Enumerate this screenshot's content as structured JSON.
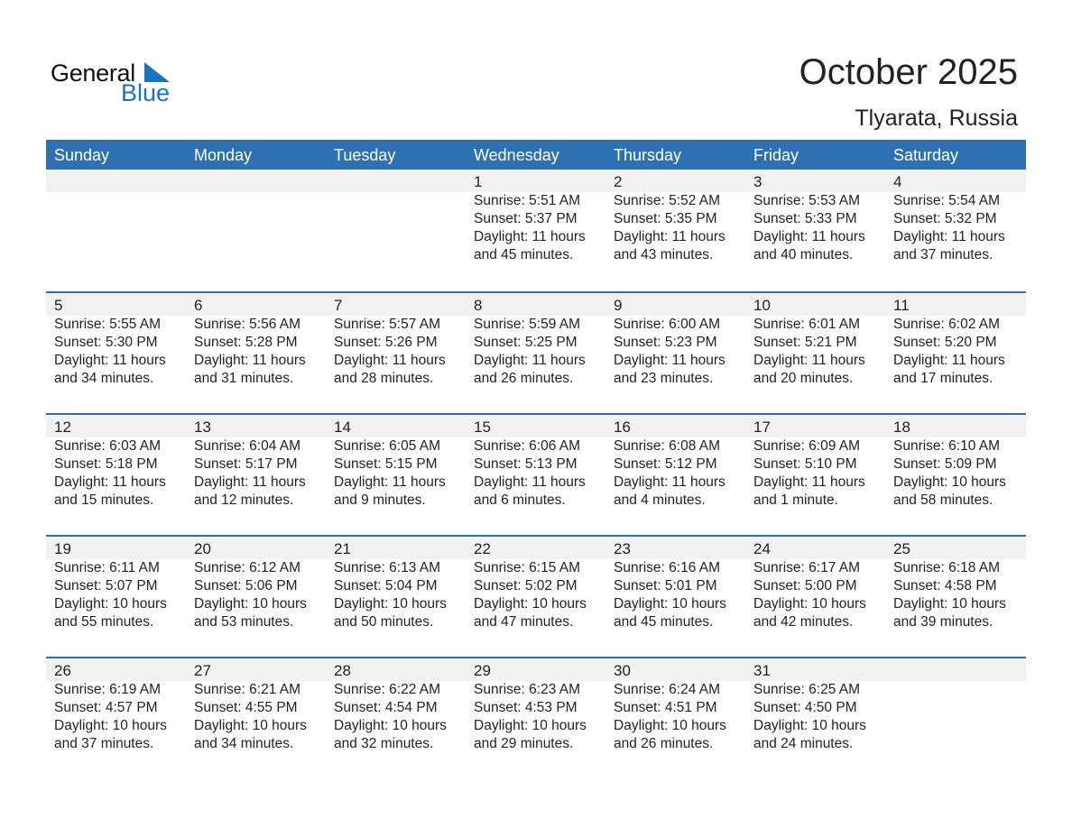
{
  "logo": {
    "text_general": "General",
    "text_blue": "Blue",
    "accent": "#1a72c0"
  },
  "header": {
    "title": "October 2025",
    "location": "Tlyarata, Russia"
  },
  "colors": {
    "header_bg": "#2e71b3",
    "date_strip": "#f2f2f2"
  },
  "weekdays": [
    "Sunday",
    "Monday",
    "Tuesday",
    "Wednesday",
    "Thursday",
    "Friday",
    "Saturday"
  ],
  "weeks": [
    [
      null,
      null,
      null,
      {
        "day": "1",
        "lines": [
          "Sunrise: 5:51 AM",
          "Sunset: 5:37 PM",
          "Daylight: 11 hours",
          "and 45 minutes."
        ]
      },
      {
        "day": "2",
        "lines": [
          "Sunrise: 5:52 AM",
          "Sunset: 5:35 PM",
          "Daylight: 11 hours",
          "and 43 minutes."
        ]
      },
      {
        "day": "3",
        "lines": [
          "Sunrise: 5:53 AM",
          "Sunset: 5:33 PM",
          "Daylight: 11 hours",
          "and 40 minutes."
        ]
      },
      {
        "day": "4",
        "lines": [
          "Sunrise: 5:54 AM",
          "Sunset: 5:32 PM",
          "Daylight: 11 hours",
          "and 37 minutes."
        ]
      }
    ],
    [
      {
        "day": "5",
        "lines": [
          "Sunrise: 5:55 AM",
          "Sunset: 5:30 PM",
          "Daylight: 11 hours",
          "and 34 minutes."
        ]
      },
      {
        "day": "6",
        "lines": [
          "Sunrise: 5:56 AM",
          "Sunset: 5:28 PM",
          "Daylight: 11 hours",
          "and 31 minutes."
        ]
      },
      {
        "day": "7",
        "lines": [
          "Sunrise: 5:57 AM",
          "Sunset: 5:26 PM",
          "Daylight: 11 hours",
          "and 28 minutes."
        ]
      },
      {
        "day": "8",
        "lines": [
          "Sunrise: 5:59 AM",
          "Sunset: 5:25 PM",
          "Daylight: 11 hours",
          "and 26 minutes."
        ]
      },
      {
        "day": "9",
        "lines": [
          "Sunrise: 6:00 AM",
          "Sunset: 5:23 PM",
          "Daylight: 11 hours",
          "and 23 minutes."
        ]
      },
      {
        "day": "10",
        "lines": [
          "Sunrise: 6:01 AM",
          "Sunset: 5:21 PM",
          "Daylight: 11 hours",
          "and 20 minutes."
        ]
      },
      {
        "day": "11",
        "lines": [
          "Sunrise: 6:02 AM",
          "Sunset: 5:20 PM",
          "Daylight: 11 hours",
          "and 17 minutes."
        ]
      }
    ],
    [
      {
        "day": "12",
        "lines": [
          "Sunrise: 6:03 AM",
          "Sunset: 5:18 PM",
          "Daylight: 11 hours",
          "and 15 minutes."
        ]
      },
      {
        "day": "13",
        "lines": [
          "Sunrise: 6:04 AM",
          "Sunset: 5:17 PM",
          "Daylight: 11 hours",
          "and 12 minutes."
        ]
      },
      {
        "day": "14",
        "lines": [
          "Sunrise: 6:05 AM",
          "Sunset: 5:15 PM",
          "Daylight: 11 hours",
          "and 9 minutes."
        ]
      },
      {
        "day": "15",
        "lines": [
          "Sunrise: 6:06 AM",
          "Sunset: 5:13 PM",
          "Daylight: 11 hours",
          "and 6 minutes."
        ]
      },
      {
        "day": "16",
        "lines": [
          "Sunrise: 6:08 AM",
          "Sunset: 5:12 PM",
          "Daylight: 11 hours",
          "and 4 minutes."
        ]
      },
      {
        "day": "17",
        "lines": [
          "Sunrise: 6:09 AM",
          "Sunset: 5:10 PM",
          "Daylight: 11 hours",
          "and 1 minute."
        ]
      },
      {
        "day": "18",
        "lines": [
          "Sunrise: 6:10 AM",
          "Sunset: 5:09 PM",
          "Daylight: 10 hours",
          "and 58 minutes."
        ]
      }
    ],
    [
      {
        "day": "19",
        "lines": [
          "Sunrise: 6:11 AM",
          "Sunset: 5:07 PM",
          "Daylight: 10 hours",
          "and 55 minutes."
        ]
      },
      {
        "day": "20",
        "lines": [
          "Sunrise: 6:12 AM",
          "Sunset: 5:06 PM",
          "Daylight: 10 hours",
          "and 53 minutes."
        ]
      },
      {
        "day": "21",
        "lines": [
          "Sunrise: 6:13 AM",
          "Sunset: 5:04 PM",
          "Daylight: 10 hours",
          "and 50 minutes."
        ]
      },
      {
        "day": "22",
        "lines": [
          "Sunrise: 6:15 AM",
          "Sunset: 5:02 PM",
          "Daylight: 10 hours",
          "and 47 minutes."
        ]
      },
      {
        "day": "23",
        "lines": [
          "Sunrise: 6:16 AM",
          "Sunset: 5:01 PM",
          "Daylight: 10 hours",
          "and 45 minutes."
        ]
      },
      {
        "day": "24",
        "lines": [
          "Sunrise: 6:17 AM",
          "Sunset: 5:00 PM",
          "Daylight: 10 hours",
          "and 42 minutes."
        ]
      },
      {
        "day": "25",
        "lines": [
          "Sunrise: 6:18 AM",
          "Sunset: 4:58 PM",
          "Daylight: 10 hours",
          "and 39 minutes."
        ]
      }
    ],
    [
      {
        "day": "26",
        "lines": [
          "Sunrise: 6:19 AM",
          "Sunset: 4:57 PM",
          "Daylight: 10 hours",
          "and 37 minutes."
        ]
      },
      {
        "day": "27",
        "lines": [
          "Sunrise: 6:21 AM",
          "Sunset: 4:55 PM",
          "Daylight: 10 hours",
          "and 34 minutes."
        ]
      },
      {
        "day": "28",
        "lines": [
          "Sunrise: 6:22 AM",
          "Sunset: 4:54 PM",
          "Daylight: 10 hours",
          "and 32 minutes."
        ]
      },
      {
        "day": "29",
        "lines": [
          "Sunrise: 6:23 AM",
          "Sunset: 4:53 PM",
          "Daylight: 10 hours",
          "and 29 minutes."
        ]
      },
      {
        "day": "30",
        "lines": [
          "Sunrise: 6:24 AM",
          "Sunset: 4:51 PM",
          "Daylight: 10 hours",
          "and 26 minutes."
        ]
      },
      {
        "day": "31",
        "lines": [
          "Sunrise: 6:25 AM",
          "Sunset: 4:50 PM",
          "Daylight: 10 hours",
          "and 24 minutes."
        ]
      },
      null
    ]
  ]
}
